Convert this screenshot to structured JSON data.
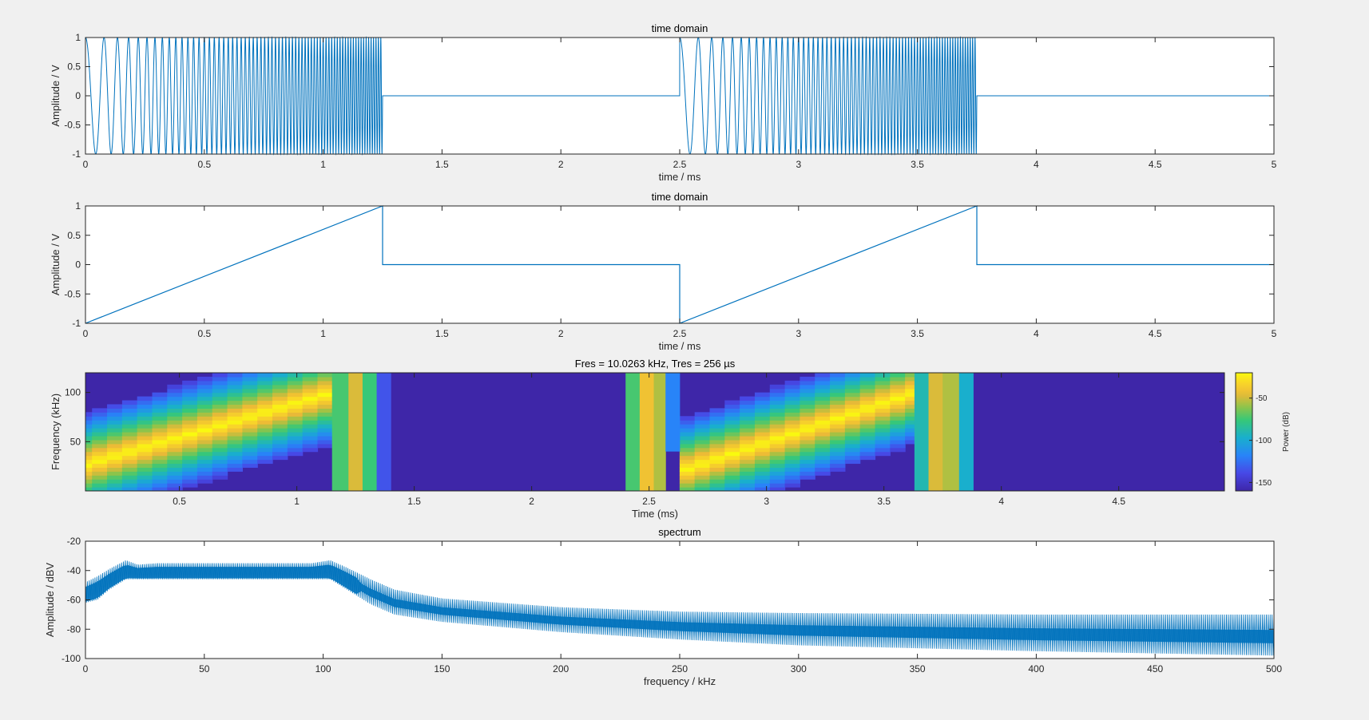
{
  "colors": {
    "line": "#0072bd",
    "axes": "#262626",
    "background": "#f0f0f0",
    "plot_bg": "#ffffff"
  },
  "chart_data": [
    {
      "id": "time1",
      "type": "line",
      "title": "time domain",
      "xlabel": "time / ms",
      "ylabel": "Amplitude / V",
      "xlim": [
        0,
        5
      ],
      "ylim": [
        -1,
        1
      ],
      "xticks": [
        0,
        0.5,
        1,
        1.5,
        2,
        2.5,
        3,
        3.5,
        4,
        4.5,
        5
      ],
      "xticklabels": [
        "0",
        "0.5",
        "1",
        "1.5",
        "2",
        "2.5",
        "3",
        "3.5",
        "4",
        "4.5",
        "5"
      ],
      "yticks": [
        -1,
        -0.5,
        0,
        0.5,
        1
      ],
      "yticklabels": [
        "-1",
        "-0.5",
        "0",
        "0.5",
        "1"
      ],
      "signal": {
        "kind": "chirp",
        "period_ms": 2.5,
        "burst_ms": 1.25,
        "f_start_khz": 10,
        "f_end_khz": 100,
        "amplitude_V": 1,
        "off_value_V": 0
      }
    },
    {
      "id": "time2",
      "type": "line",
      "title": "time domain",
      "xlabel": "time / ms",
      "ylabel": "Amplitude / V",
      "xlim": [
        0,
        5
      ],
      "ylim": [
        -1,
        1
      ],
      "xticks": [
        0,
        0.5,
        1,
        1.5,
        2,
        2.5,
        3,
        3.5,
        4,
        4.5,
        5
      ],
      "xticklabels": [
        "0",
        "0.5",
        "1",
        "1.5",
        "2",
        "2.5",
        "3",
        "3.5",
        "4",
        "4.5",
        "5"
      ],
      "yticks": [
        -1,
        -0.5,
        0,
        0.5,
        1
      ],
      "yticklabels": [
        "-1",
        "-0.5",
        "0",
        "0.5",
        "1"
      ],
      "x": [
        0,
        1.25,
        1.25,
        2.5,
        2.5,
        3.75,
        3.75,
        5
      ],
      "y": [
        -1,
        1,
        0,
        0,
        -1,
        1,
        0,
        0
      ]
    },
    {
      "id": "spectrogram",
      "type": "heatmap",
      "title": "Fres = 10.0263 kHz, Tres = 256 µs",
      "xlabel": "Time (ms)",
      "ylabel": "Frequency (kHz)",
      "xlim": [
        0.1,
        4.95
      ],
      "ylim": [
        0,
        120
      ],
      "xticks": [
        0.5,
        1,
        1.5,
        2,
        2.5,
        3,
        3.5,
        4,
        4.5
      ],
      "xticklabels": [
        "0.5",
        "1",
        "1.5",
        "2",
        "2.5",
        "3",
        "3.5",
        "4",
        "4.5"
      ],
      "yticks": [
        50,
        100
      ],
      "yticklabels": [
        "50",
        "100"
      ],
      "colorbar": {
        "label": "Power (dB)",
        "clim": [
          -160,
          -20
        ],
        "ticks": [
          -50,
          -100,
          -150
        ],
        "ticklabels": [
          "-50",
          "-100",
          "-150"
        ]
      },
      "sweeps": [
        {
          "start_ms": 0.0,
          "end_ms": 1.15,
          "f_start_khz": 20,
          "f_end_khz": 100
        },
        {
          "start_ms": 2.63,
          "end_ms": 3.63,
          "f_start_khz": 20,
          "f_end_khz": 100
        }
      ],
      "full_columns": [
        {
          "start_ms": 1.15,
          "end_ms": 1.22,
          "level": 0.62
        },
        {
          "start_ms": 1.22,
          "end_ms": 1.28,
          "level": 0.8
        },
        {
          "start_ms": 1.28,
          "end_ms": 1.34,
          "level": 0.6
        },
        {
          "start_ms": 1.34,
          "end_ms": 1.4,
          "level": 0.18
        },
        {
          "start_ms": 2.4,
          "end_ms": 2.46,
          "level": 0.62
        },
        {
          "start_ms": 2.46,
          "end_ms": 2.52,
          "level": 0.85
        },
        {
          "start_ms": 2.52,
          "end_ms": 2.57,
          "level": 0.75
        },
        {
          "start_ms": 3.63,
          "end_ms": 3.69,
          "level": 0.5
        },
        {
          "start_ms": 3.69,
          "end_ms": 3.75,
          "level": 0.8
        },
        {
          "start_ms": 3.75,
          "end_ms": 3.82,
          "level": 0.75
        },
        {
          "start_ms": 3.82,
          "end_ms": 3.88,
          "level": 0.45
        }
      ],
      "partial_columns": [
        {
          "start_ms": 2.57,
          "end_ms": 2.63,
          "f_low_khz": 40,
          "f_high_khz": 120,
          "level": 0.3
        }
      ]
    },
    {
      "id": "spectrum",
      "type": "area",
      "title": "spectrum",
      "xlabel": "frequency / kHz",
      "ylabel": "Amplitude / dBV",
      "xlim": [
        0,
        500
      ],
      "ylim": [
        -100,
        -20
      ],
      "xticks": [
        0,
        50,
        100,
        150,
        200,
        250,
        300,
        350,
        400,
        450,
        500
      ],
      "xticklabels": [
        "0",
        "50",
        "100",
        "150",
        "200",
        "250",
        "300",
        "350",
        "400",
        "450",
        "500"
      ],
      "yticks": [
        -100,
        -80,
        -60,
        -40,
        -20
      ],
      "yticklabels": [
        "-100",
        "-80",
        "-60",
        "-40",
        "-20"
      ],
      "envelope": {
        "freq_khz": [
          0,
          5,
          10,
          17,
          22,
          30,
          95,
          103,
          110,
          120,
          130,
          150,
          200,
          250,
          300,
          400,
          500
        ],
        "upper_dbv": [
          -48,
          -44,
          -39,
          -33,
          -36,
          -35,
          -35,
          -33,
          -38,
          -46,
          -53,
          -59,
          -65,
          -68,
          -69,
          -70,
          -70
        ],
        "lower_dbv": [
          -62,
          -60,
          -53,
          -46,
          -46,
          -46,
          -46,
          -46,
          -53,
          -63,
          -70,
          -75,
          -82,
          -87,
          -91,
          -95,
          -98
        ]
      }
    }
  ]
}
